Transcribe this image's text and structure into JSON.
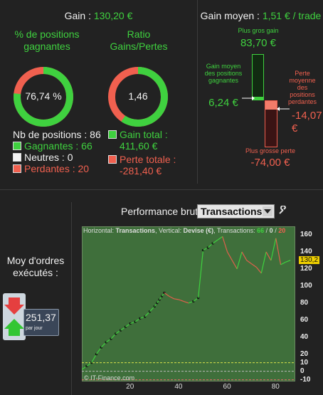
{
  "top_left": {
    "gain_label": "Gain : ",
    "gain_value": "130,20 €",
    "pct_title": "% de positions gagnantes",
    "pct_value": "76,74 %",
    "ratio_title": "Ratio Gains/Pertes",
    "ratio_value": "1,46",
    "nb_positions": "Nb de positions : 86",
    "gagnantes": "Gagnantes : 66",
    "neutres": "Neutres : 0",
    "perdantes": "Perdantes : 20",
    "gain_total_label": "Gain total :",
    "gain_total_value": "411,60 €",
    "perte_totale_label": "Perte totale :",
    "perte_totale_value": "-281,40 €",
    "pct_fraction": 0.7674,
    "ratio_fraction": 0.594
  },
  "top_right": {
    "title_label": "Gain moyen : ",
    "title_value": "1,51 € / trade",
    "plus_gros_gain_label": "Plus gros gain",
    "plus_gros_gain_value": "83,70 €",
    "gain_moyen_label": "Gain moyen des positions gagnantes",
    "gain_moyen_value": "6,24 €",
    "perte_moyenne_label": "Perte moyenne des positions perdantes",
    "perte_moyenne_value": "-14,07 €",
    "plus_grosse_perte_label": "Plus grosse perte",
    "plus_grosse_perte_value": "-74,00 €"
  },
  "left_panel": {
    "moy_label": "Moy d'ordres exécutés :",
    "value": "251,37",
    "unit": "par jour"
  },
  "chart_header": {
    "title": "Performance brute",
    "select_value": "Transactions",
    "legend_h_label": "Horizontal: ",
    "legend_h_value": "Transactions",
    "legend_v_label": ", Vertical: ",
    "legend_v_value": "Devise (€)",
    "legend_t_label": ", Transactions: ",
    "legend_t_win": "66",
    "legend_t_sep1": " / ",
    "legend_t_neutral": "0",
    "legend_t_sep2": " / ",
    "legend_t_loss": "20",
    "watermark": "© IT-Finance.com",
    "current_value": "130,2"
  },
  "colors": {
    "win": "#3fd13f",
    "loss": "#f0604f",
    "chart_bg": "#3f6f3b"
  },
  "chart_data": {
    "type": "line",
    "xlabel": "",
    "ylabel": "",
    "xlim": [
      0,
      88
    ],
    "ylim": [
      -12,
      170
    ],
    "x_ticks": [
      "20",
      "40",
      "60",
      "80"
    ],
    "y_ticks": [
      "160",
      "140",
      "120",
      "100",
      "80",
      "60",
      "40",
      "20",
      "10",
      "0",
      "-10"
    ],
    "series": [
      {
        "x": [
          0,
          2,
          4,
          6,
          8,
          10,
          12,
          14,
          16,
          18,
          20,
          22,
          24,
          26,
          28,
          30,
          31,
          32,
          33,
          34,
          36,
          38,
          40,
          42,
          44,
          46,
          48,
          50,
          52,
          54,
          56,
          58,
          60,
          62,
          64,
          66,
          68,
          70,
          72,
          74,
          76,
          78,
          80,
          82,
          84,
          86
        ],
        "values": [
          2,
          6,
          10,
          20,
          28,
          34,
          38,
          44,
          48,
          52,
          56,
          58,
          62,
          64,
          70,
          76,
          80,
          84,
          88,
          92,
          88,
          85,
          84,
          82,
          80,
          82,
          86,
          142,
          145,
          150,
          154,
          158,
          140,
          130,
          120,
          140,
          130,
          126,
          122,
          115,
          140,
          130,
          156,
          125,
          128,
          130.2
        ]
      }
    ]
  }
}
